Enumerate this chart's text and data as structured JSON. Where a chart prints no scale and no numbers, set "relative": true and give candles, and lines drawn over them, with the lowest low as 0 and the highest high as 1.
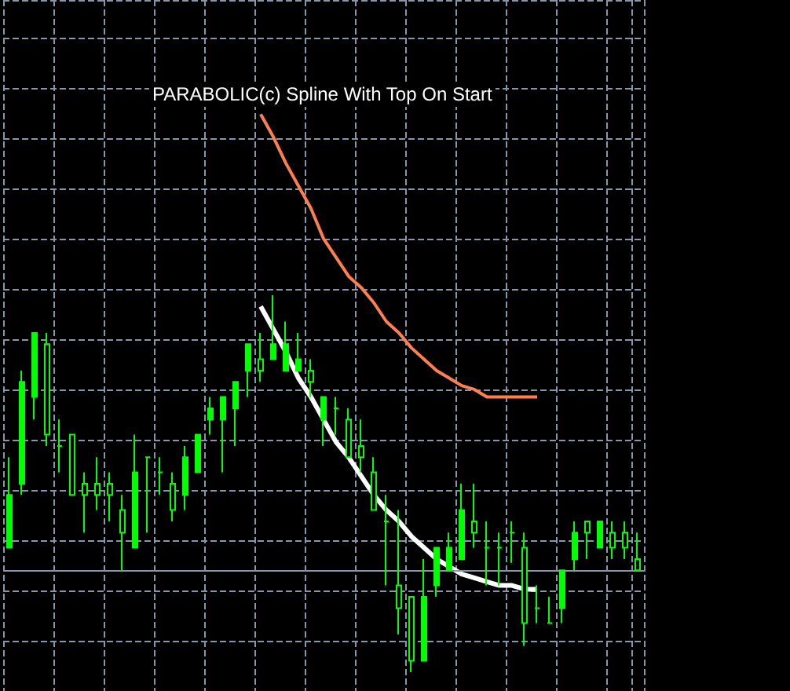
{
  "chart_data": {
    "type": "candlestick",
    "relative": true,
    "grid": true,
    "annotations": [
      "PARABOLIC(c) Spline With Top On Start"
    ],
    "categories": [
      null,
      null,
      null,
      null,
      null,
      null,
      null,
      null,
      null,
      null,
      null,
      null,
      null,
      null,
      null,
      null,
      null,
      null,
      null,
      null,
      null,
      null,
      null,
      null,
      null,
      null,
      null,
      null,
      null,
      null,
      null,
      null,
      null,
      null,
      null,
      null,
      null,
      null,
      null,
      null,
      null,
      null,
      null,
      null,
      null,
      null,
      null,
      null,
      null,
      null,
      null
    ],
    "ref_lines": [
      {
        "axis": "y",
        "value": 0.27,
        "color": "#8797aa"
      }
    ],
    "series": [
      {
        "type": "line",
        "color": "#ffffff",
        "values": [
          null,
          null,
          null,
          null,
          null,
          null,
          null,
          null,
          null,
          null,
          null,
          null,
          null,
          null,
          null,
          null,
          null,
          null,
          null,
          null,
          0.97,
          0.91,
          0.85,
          0.78,
          0.73,
          0.67,
          0.61,
          0.57,
          0.52,
          0.47,
          0.43,
          0.4,
          0.36,
          0.33,
          0.3,
          0.28,
          0.26,
          0.25,
          0.24,
          0.23,
          0.23,
          0.22,
          0.22,
          null,
          null,
          null,
          null,
          null,
          null,
          null,
          null
        ]
      },
      {
        "type": "line",
        "color": "#ff7f50",
        "values": [
          null,
          null,
          null,
          null,
          null,
          null,
          null,
          null,
          null,
          null,
          null,
          null,
          null,
          null,
          null,
          null,
          null,
          null,
          null,
          null,
          1.48,
          1.42,
          1.35,
          1.29,
          1.23,
          1.15,
          1.1,
          1.05,
          1.02,
          0.98,
          0.93,
          0.9,
          0.86,
          0.83,
          0.8,
          0.78,
          0.76,
          0.75,
          0.73,
          0.73,
          0.73,
          0.73,
          0.73,
          null,
          null,
          null,
          null,
          null,
          null,
          null,
          null
        ]
      },
      {
        "type": "candlestick",
        "color": "#00ff00",
        "ohlc": [
          [
            0.33,
            0.57,
            0.33,
            0.47
          ],
          [
            0.5,
            0.8,
            0.47,
            0.77
          ],
          [
            0.73,
            0.9,
            0.67,
            0.9
          ],
          [
            0.87,
            0.9,
            0.6,
            0.63
          ],
          [
            0.6,
            0.67,
            0.53,
            0.6
          ],
          [
            0.63,
            0.63,
            0.47,
            0.47
          ],
          [
            0.5,
            0.53,
            0.37,
            0.47
          ],
          [
            0.5,
            0.57,
            0.43,
            0.47
          ],
          [
            0.5,
            0.53,
            0.4,
            0.47
          ],
          [
            0.43,
            0.47,
            0.27,
            0.37
          ],
          [
            0.33,
            0.63,
            0.33,
            0.53
          ],
          [
            0.57,
            0.57,
            0.37,
            0.57
          ],
          [
            0.53,
            0.57,
            0.47,
            0.53
          ],
          [
            0.5,
            0.53,
            0.4,
            0.43
          ],
          [
            0.47,
            0.6,
            0.43,
            0.57
          ],
          [
            0.53,
            0.63,
            0.53,
            0.63
          ],
          [
            0.67,
            0.73,
            0.63,
            0.7
          ],
          [
            0.67,
            0.73,
            0.53,
            0.73
          ],
          [
            0.7,
            0.77,
            0.6,
            0.77
          ],
          [
            0.8,
            0.87,
            0.73,
            0.87
          ],
          [
            0.83,
            0.9,
            0.77,
            0.8
          ],
          [
            0.83,
            1,
            0.83,
            0.87
          ],
          [
            0.8,
            0.93,
            0.8,
            0.87
          ],
          [
            0.8,
            0.9,
            0.8,
            0.83
          ],
          [
            0.8,
            0.83,
            0.73,
            0.77
          ],
          [
            0.67,
            0.73,
            0.6,
            0.73
          ],
          [
            0.7,
            0.73,
            0.63,
            0.7
          ],
          [
            0.67,
            0.7,
            0.57,
            0.57
          ],
          [
            0.6,
            0.67,
            0.53,
            0.57
          ],
          [
            0.53,
            0.57,
            0.43,
            0.43
          ],
          [
            0.4,
            0.47,
            0.23,
            0.4
          ],
          [
            0.23,
            0.43,
            0.1,
            0.17
          ],
          [
            0.2,
            0.2,
            0,
            0.03
          ],
          [
            0.03,
            0.3,
            0.03,
            0.2
          ],
          [
            0.23,
            0.33,
            0.2,
            0.33
          ],
          [
            0.27,
            0.37,
            0.27,
            0.33
          ],
          [
            0.3,
            0.5,
            0.3,
            0.43
          ],
          [
            0.4,
            0.5,
            0.33,
            0.37
          ],
          [
            0.33,
            0.4,
            0.23,
            0.33
          ],
          [
            0.33,
            0.37,
            0.23,
            0.33
          ],
          [
            0.37,
            0.4,
            0.29,
            0.37
          ],
          [
            0.33,
            0.37,
            0.07,
            0.13
          ],
          [
            0.17,
            0.23,
            0.13,
            0.17
          ],
          [
            0.13,
            0.2,
            0.13,
            0.13
          ],
          [
            0.17,
            0.27,
            0.13,
            0.27
          ],
          [
            0.3,
            0.4,
            0.27,
            0.37
          ],
          [
            0.4,
            0.4,
            0.3,
            0.37
          ],
          [
            0.33,
            0.4,
            0.33,
            0.4
          ],
          [
            0.37,
            0.4,
            0.3,
            0.33
          ],
          [
            0.37,
            0.4,
            0.3,
            0.33
          ],
          [
            0.3,
            0.37,
            0.27,
            0.27
          ]
        ]
      }
    ]
  }
}
